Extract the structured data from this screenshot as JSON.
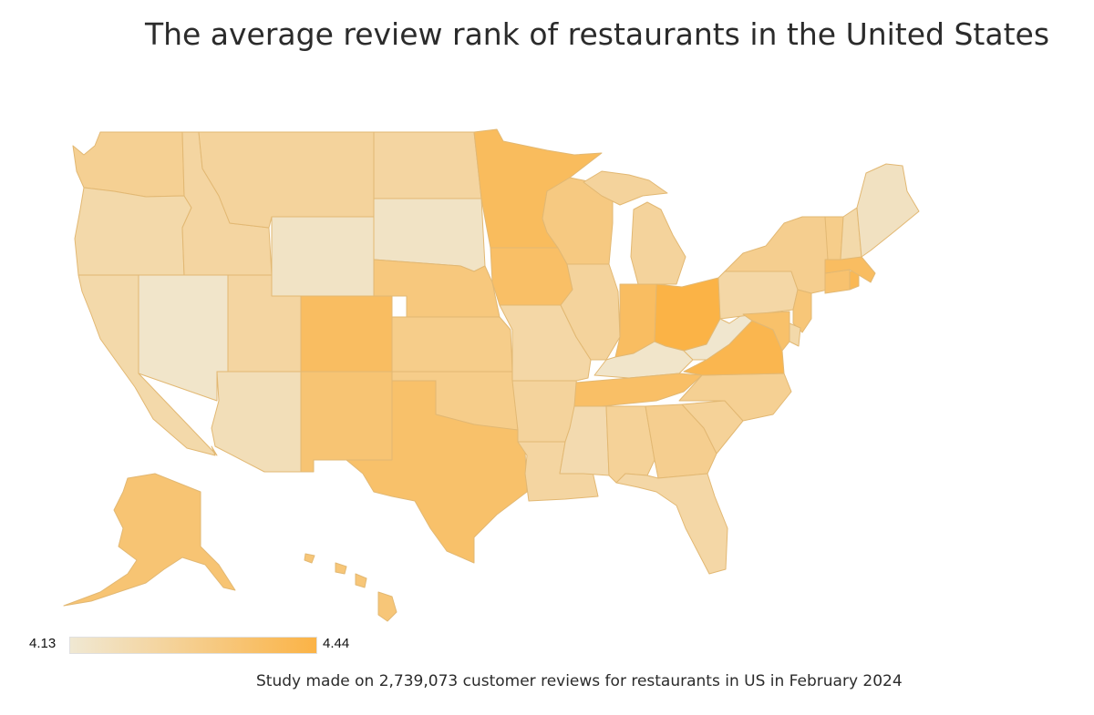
{
  "title": "The average review rank of restaurants in the United States",
  "footnote": "Study made on 2,739,073 customer reviews for restaurants in US in February 2024",
  "legend": {
    "min_label": "4.13",
    "max_label": "4.44",
    "color_low": "#f0e8d3",
    "color_high": "#fbb346"
  },
  "palette": {
    "stroke": "#e2b873"
  },
  "map_data": {
    "type": "choropleth",
    "scale_min": 4.13,
    "scale_max": 4.44,
    "states": [
      {
        "code": "WA",
        "value": 4.27
      },
      {
        "code": "OR",
        "value": 4.22
      },
      {
        "code": "CA",
        "value": 4.22
      },
      {
        "code": "NV",
        "value": 4.15
      },
      {
        "code": "ID",
        "value": 4.24
      },
      {
        "code": "MT",
        "value": 4.25
      },
      {
        "code": "WY",
        "value": 4.16
      },
      {
        "code": "UT",
        "value": 4.24
      },
      {
        "code": "AZ",
        "value": 4.19
      },
      {
        "code": "CO",
        "value": 4.38
      },
      {
        "code": "NM",
        "value": 4.34
      },
      {
        "code": "ND",
        "value": 4.24
      },
      {
        "code": "SD",
        "value": 4.16
      },
      {
        "code": "NE",
        "value": 4.32
      },
      {
        "code": "KS",
        "value": 4.29
      },
      {
        "code": "OK",
        "value": 4.29
      },
      {
        "code": "TX",
        "value": 4.36
      },
      {
        "code": "MN",
        "value": 4.39
      },
      {
        "code": "IA",
        "value": 4.37
      },
      {
        "code": "MO",
        "value": 4.23
      },
      {
        "code": "AR",
        "value": 4.25
      },
      {
        "code": "LA",
        "value": 4.24
      },
      {
        "code": "WI",
        "value": 4.31
      },
      {
        "code": "IL",
        "value": 4.25
      },
      {
        "code": "MI",
        "value": 4.25
      },
      {
        "code": "IN",
        "value": 4.38
      },
      {
        "code": "OH",
        "value": 4.44
      },
      {
        "code": "KY",
        "value": 4.15
      },
      {
        "code": "TN",
        "value": 4.37
      },
      {
        "code": "MS",
        "value": 4.21
      },
      {
        "code": "AL",
        "value": 4.26
      },
      {
        "code": "GA",
        "value": 4.28
      },
      {
        "code": "FL",
        "value": 4.23
      },
      {
        "code": "SC",
        "value": 4.26
      },
      {
        "code": "NC",
        "value": 4.27
      },
      {
        "code": "VA",
        "value": 4.42
      },
      {
        "code": "WV",
        "value": 4.14
      },
      {
        "code": "PA",
        "value": 4.23
      },
      {
        "code": "NY",
        "value": 4.28
      },
      {
        "code": "VT",
        "value": 4.29
      },
      {
        "code": "NH",
        "value": 4.22
      },
      {
        "code": "ME",
        "value": 4.17
      },
      {
        "code": "MA",
        "value": 4.38
      },
      {
        "code": "RI",
        "value": 4.41
      },
      {
        "code": "CT",
        "value": 4.35
      },
      {
        "code": "NJ",
        "value": 4.33
      },
      {
        "code": "DE",
        "value": 4.22
      },
      {
        "code": "MD",
        "value": 4.36
      },
      {
        "code": "AK",
        "value": 4.34
      },
      {
        "code": "HI",
        "value": 4.33
      }
    ]
  }
}
